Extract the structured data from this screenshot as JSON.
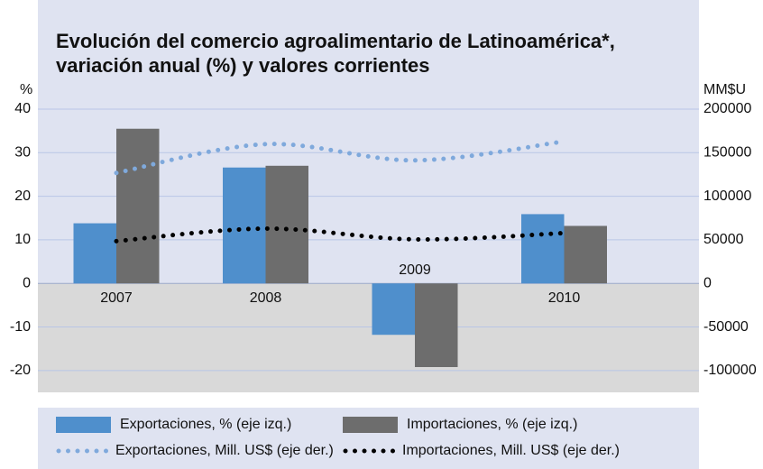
{
  "chart_data": {
    "type": "bar_line",
    "title": [
      "Evolución del comercio agroalimentario de Latinoamérica*,",
      "variación anual (%) y valores corrientes"
    ],
    "y_label": "%",
    "y2_label": "MM$U",
    "categories": [
      "2007",
      "2008",
      "2009",
      "2010"
    ],
    "ylim": [
      -25,
      40
    ],
    "yticks": [
      -20,
      -10,
      0,
      10,
      20,
      30,
      40
    ],
    "y2lim": [
      -125000,
      200000
    ],
    "y2ticks": [
      -100000,
      -50000,
      0,
      50000,
      100000,
      150000,
      200000
    ],
    "grid": true,
    "legend": "bottom",
    "series": [
      {
        "name": "Exportaciones, % (eje izq.)",
        "kind": "bar",
        "color": "#4f8fcc",
        "values": [
          13.8,
          26.6,
          -11.8,
          15.9
        ]
      },
      {
        "name": "Importaciones, % (eje izq.)",
        "kind": "bar",
        "color": "#6d6d6d",
        "values": [
          35.5,
          27,
          -19.2,
          13.2
        ]
      },
      {
        "name": "Exportaciones, Mill. US$ (eje der.)",
        "kind": "line",
        "axis": "y2",
        "color": "#7fa9dc",
        "values": [
          126800,
          159800,
          141200,
          162900
        ]
      },
      {
        "name": "Importaciones, Mill. US$ (eje der.)",
        "kind": "line",
        "axis": "y2",
        "color": "#000000",
        "values": [
          48500,
          62900,
          50500,
          57700
        ]
      }
    ]
  }
}
